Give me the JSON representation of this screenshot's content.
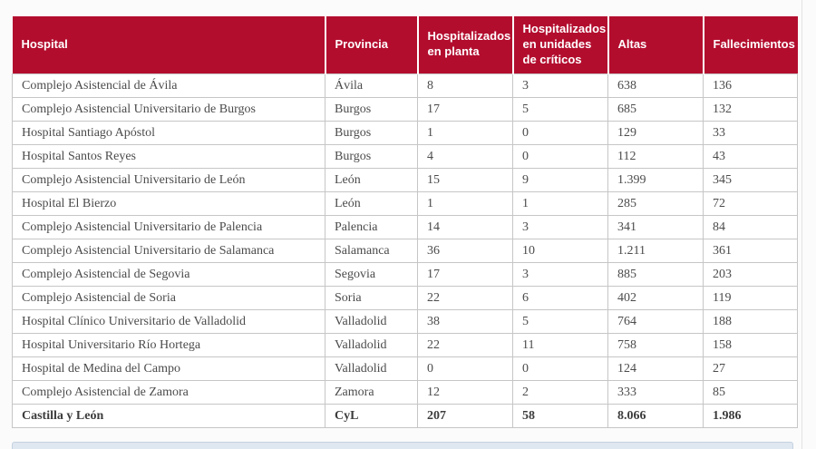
{
  "colors": {
    "page_bg": "#fbfbfb",
    "page_edge": "#e2e2e2",
    "header_bg": "#b30d2e",
    "header_text": "#ffffff",
    "cell_border": "#c6c6c6",
    "cell_text": "#4b4b4b",
    "total_text": "#3c3c3c",
    "panel_bg": "#dfe7f0",
    "panel_border": "#c5d2e0"
  },
  "chart_data": {
    "type": "table",
    "columns": [
      "Hospital",
      "Provincia",
      "Hospitalizados en planta",
      "Hospitalizados en unidades de críticos",
      "Altas",
      "Fallecimientos"
    ],
    "rows": [
      [
        "Complejo Asistencial de Ávila",
        "Ávila",
        "8",
        "3",
        "638",
        "136"
      ],
      [
        "Complejo Asistencial Universitario de Burgos",
        "Burgos",
        "17",
        "5",
        "685",
        "132"
      ],
      [
        "Hospital Santiago Apóstol",
        "Burgos",
        "1",
        "0",
        "129",
        "33"
      ],
      [
        "Hospital Santos Reyes",
        "Burgos",
        "4",
        "0",
        "112",
        "43"
      ],
      [
        "Complejo Asistencial Universitario de León",
        "León",
        "15",
        "9",
        "1.399",
        "345"
      ],
      [
        "Hospital El Bierzo",
        "León",
        "1",
        "1",
        "285",
        "72"
      ],
      [
        "Complejo Asistencial Universitario de Palencia",
        "Palencia",
        "14",
        "3",
        "341",
        "84"
      ],
      [
        "Complejo Asistencial Universitario de Salamanca",
        "Salamanca",
        "36",
        "10",
        "1.211",
        "361"
      ],
      [
        "Complejo Asistencial de Segovia",
        "Segovia",
        "17",
        "3",
        "885",
        "203"
      ],
      [
        "Complejo Asistencial de Soria",
        "Soria",
        "22",
        "6",
        "402",
        "119"
      ],
      [
        "Hospital Clínico Universitario de Valladolid",
        "Valladolid",
        "38",
        "5",
        "764",
        "188"
      ],
      [
        "Hospital Universitario Río Hortega",
        "Valladolid",
        "22",
        "11",
        "758",
        "158"
      ],
      [
        "Hospital de Medina del Campo",
        "Valladolid",
        "0",
        "0",
        "124",
        "27"
      ],
      [
        "Complejo Asistencial de Zamora",
        "Zamora",
        "12",
        "2",
        "333",
        "85"
      ]
    ],
    "total_row": [
      "Castilla y León",
      "CyL",
      "207",
      "58",
      "8.066",
      "1.986"
    ]
  }
}
